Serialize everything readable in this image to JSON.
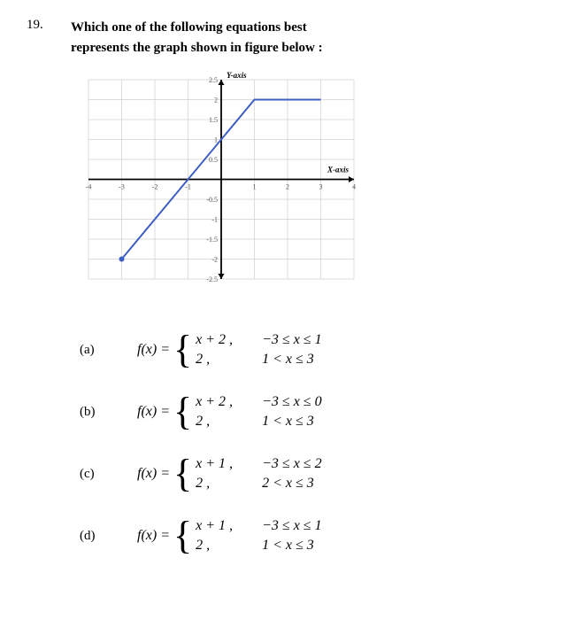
{
  "question": {
    "number": "19.",
    "text_line1": "Which one of the following equations best",
    "text_line2": "represents the graph shown in figure below :"
  },
  "chart": {
    "type": "line",
    "xlim": [
      -4,
      4
    ],
    "ylim": [
      -2.5,
      2.5
    ],
    "xtick_step": 1,
    "ytick_step": 0.5,
    "x_axis_label": "X-axis",
    "y_axis_label": "Y-axis",
    "title_fontsize": 9,
    "tick_fontsize": 8,
    "axis_color": "#000000",
    "grid_color": "#d0d0d0",
    "line_color": "#3b5fc4",
    "line_width": 2,
    "marker_color": "#3b5fc4",
    "marker_radius": 3,
    "arrow_size": 6,
    "background_color": "#ffffff",
    "points": [
      {
        "x": -3,
        "y": -2,
        "marker": true
      },
      {
        "x": 1,
        "y": 2,
        "marker": false
      },
      {
        "x": 3,
        "y": 2,
        "marker": false
      }
    ],
    "x_ticks": [
      -4,
      -3,
      -2,
      -1,
      1,
      2,
      3,
      4
    ],
    "y_ticks": [
      2.5,
      2,
      1.5,
      1,
      0.5,
      -0.5,
      -1,
      -1.5,
      -2,
      -2.5
    ]
  },
  "options": [
    {
      "label": "(a)",
      "fx": "f(x) =",
      "cases": [
        {
          "expr": "x + 2 ,",
          "cond": "−3 ≤ x ≤ 1"
        },
        {
          "expr": "2 ,",
          "cond": "1 < x ≤ 3"
        }
      ]
    },
    {
      "label": "(b)",
      "fx": "f(x) =",
      "cases": [
        {
          "expr": "x + 2 ,",
          "cond": "−3 ≤ x ≤ 0"
        },
        {
          "expr": "2 ,",
          "cond": "1 < x ≤ 3"
        }
      ]
    },
    {
      "label": "(c)",
      "fx": "f(x) =",
      "cases": [
        {
          "expr": "x + 1 ,",
          "cond": "−3 ≤ x ≤ 2"
        },
        {
          "expr": "2 ,",
          "cond": "2 < x ≤ 3"
        }
      ]
    },
    {
      "label": "(d)",
      "fx": "f(x) =",
      "cases": [
        {
          "expr": "x + 1 ,",
          "cond": "−3 ≤ x ≤ 1"
        },
        {
          "expr": "2 ,",
          "cond": "1 < x ≤ 3"
        }
      ]
    }
  ]
}
